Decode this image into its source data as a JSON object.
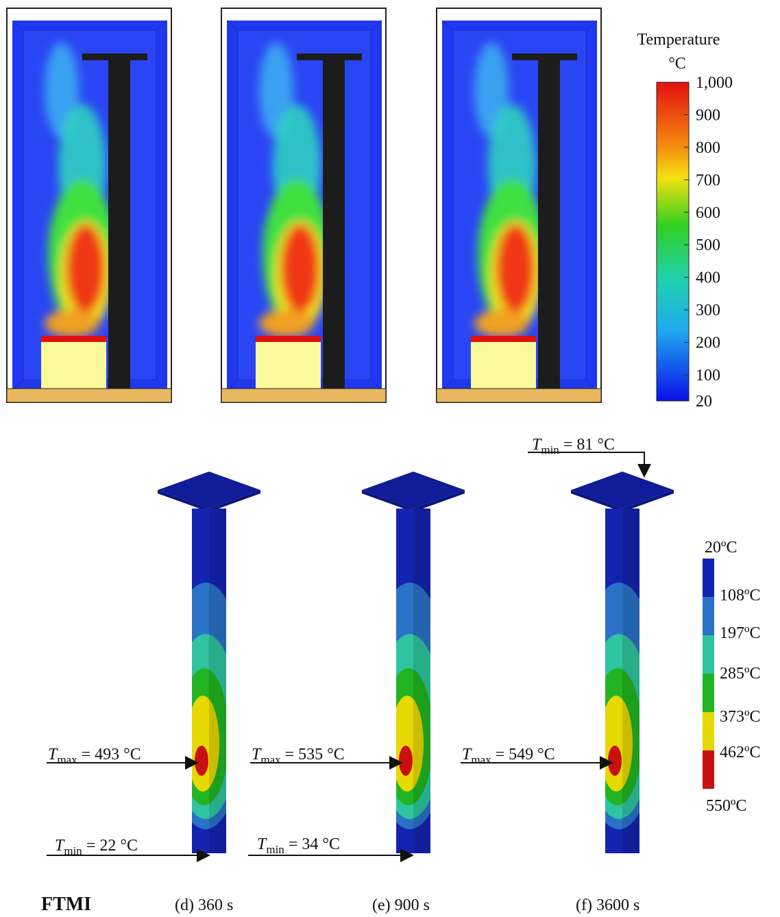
{
  "colorbar_top": {
    "title": "Temperature",
    "unit": "°C",
    "ticks": [
      {
        "value": 1000,
        "label": "1,000"
      },
      900,
      800,
      700,
      600,
      500,
      400,
      300,
      200,
      100,
      20
    ]
  },
  "colorbar_bottom": {
    "labels": [
      "20ºC",
      "108ºC",
      "197ºC",
      "285ºC",
      "373ºC",
      "462ºC",
      "550ºC"
    ]
  },
  "annotations": [
    {
      "symbol": "T",
      "subscript": "min",
      "text": "= 81 °C"
    },
    {
      "symbol": "T",
      "subscript": "max",
      "text": "= 493 °C"
    },
    {
      "symbol": "T",
      "subscript": "min",
      "text": "= 22 °C"
    },
    {
      "symbol": "T",
      "subscript": "max",
      "text": "= 535 °C"
    },
    {
      "symbol": "T",
      "subscript": "min",
      "text": "= 34 °C"
    },
    {
      "symbol": "T",
      "subscript": "max",
      "text": "= 549 °C"
    }
  ],
  "captions": {
    "method": "FTMI",
    "panels": [
      "(d) 360 s",
      "(e) 900 s",
      "(f) 3600 s"
    ]
  }
}
